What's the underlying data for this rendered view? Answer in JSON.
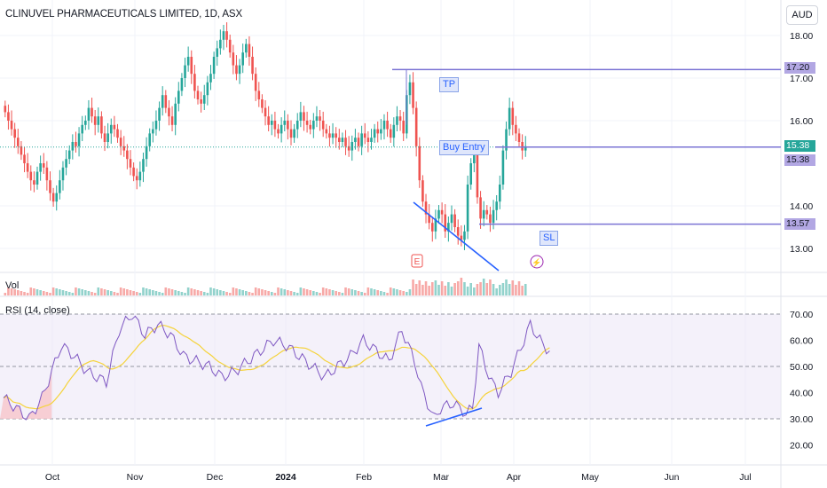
{
  "header": {
    "title": "CLINUVEL PHARMACEUTICALS LIMITED, 1D, ASX",
    "currency": "AUD"
  },
  "annotations": {
    "tp_label": "TP",
    "buy_label": "Buy Entry",
    "sl_label": "SL",
    "earnings_marker": "E",
    "dividend_marker": "⚡"
  },
  "price_tags": {
    "tp": "17.20",
    "current": "15.38",
    "current_close": "15.38",
    "sl": "13.57"
  },
  "panes": {
    "volume_label": "Vol",
    "rsi_label": "RSI (14, close)"
  },
  "colors": {
    "up": "#26a69a",
    "down": "#ef5350",
    "level_line": "#7b74d4",
    "tag_fill": "#b2a7e3",
    "trendline": "#2962ff",
    "rsi_line": "#7e57c2",
    "rsi_ma": "#f5d33b",
    "rsi_band": "#ede7f6"
  },
  "chart_data": [
    {
      "type": "candlestick",
      "title": "CLINUVEL PHARMACEUTICALS LIMITED, 1D, ASX",
      "x_ticks": [
        "Oct",
        "Nov",
        "Dec",
        "2024",
        "Feb",
        "Mar",
        "Apr",
        "May",
        "Jun",
        "Jul"
      ],
      "y_ticks": [
        "18.00",
        "17.00",
        "16.00",
        "14.00",
        "13.00"
      ],
      "ylim": [
        12.5,
        18.5
      ],
      "closes": [
        16.2,
        16.0,
        15.8,
        15.6,
        15.4,
        15.2,
        15.0,
        14.8,
        14.6,
        14.5,
        14.8,
        15.0,
        14.9,
        14.6,
        14.3,
        14.1,
        14.3,
        14.6,
        14.9,
        15.1,
        15.3,
        15.5,
        15.4,
        15.7,
        15.9,
        16.0,
        16.3,
        16.1,
        15.9,
        16.1,
        15.7,
        15.5,
        15.7,
        15.9,
        15.8,
        15.6,
        15.4,
        15.3,
        15.1,
        14.9,
        14.7,
        14.6,
        14.8,
        15.1,
        15.4,
        15.7,
        15.8,
        16.0,
        16.3,
        16.6,
        16.3,
        16.1,
        15.9,
        16.4,
        16.7,
        17.0,
        17.3,
        17.5,
        17.1,
        16.7,
        16.5,
        16.4,
        16.6,
        16.9,
        17.1,
        17.5,
        17.7,
        17.9,
        18.1,
        17.9,
        17.6,
        17.3,
        17.1,
        17.3,
        17.6,
        17.8,
        17.5,
        17.1,
        16.7,
        16.5,
        16.3,
        16.1,
        15.9,
        16.0,
        15.8,
        15.7,
        15.9,
        16.0,
        15.8,
        15.6,
        15.8,
        16.0,
        16.2,
        16.0,
        15.9,
        15.8,
        16.0,
        16.1,
        16.0,
        15.8,
        15.7,
        15.6,
        15.7,
        15.6,
        15.5,
        15.6,
        15.4,
        15.3,
        15.5,
        15.6,
        15.4,
        15.7,
        15.6,
        15.5,
        15.6,
        15.8,
        15.7,
        15.8,
        16.0,
        15.8,
        15.6,
        15.9,
        16.1,
        16.0,
        15.7,
        16.6,
        16.9,
        16.3,
        15.4,
        14.6,
        14.1,
        13.8,
        13.6,
        13.4,
        13.7,
        13.9,
        13.8,
        13.4,
        13.6,
        13.8,
        13.5,
        13.3,
        13.2,
        13.4,
        14.5,
        15.0,
        15.3,
        14.2,
        13.7,
        13.9,
        13.8,
        13.6,
        13.9,
        14.1,
        14.5,
        15.3,
        15.8,
        16.3,
        15.9,
        15.7,
        15.5,
        15.3,
        15.4
      ],
      "levels": {
        "tp": 17.2,
        "buy_entry": 15.38,
        "sl": 13.57
      },
      "volume_label": "Vol"
    },
    {
      "type": "line",
      "title": "RSI (14, close)",
      "y_ticks": [
        "70.00",
        "60.00",
        "50.00",
        "40.00",
        "30.00",
        "20.00"
      ],
      "ylim": [
        15,
        72
      ],
      "rsi_knots": [
        [
          0,
          38
        ],
        [
          4,
          34
        ],
        [
          8,
          30
        ],
        [
          12,
          38
        ],
        [
          18,
          58
        ],
        [
          22,
          54
        ],
        [
          26,
          48
        ],
        [
          32,
          44
        ],
        [
          36,
          64
        ],
        [
          40,
          70
        ],
        [
          44,
          62
        ],
        [
          48,
          66
        ],
        [
          52,
          62
        ],
        [
          56,
          54
        ],
        [
          60,
          52
        ],
        [
          64,
          50
        ],
        [
          68,
          46
        ],
        [
          72,
          48
        ],
        [
          76,
          52
        ],
        [
          80,
          56
        ],
        [
          84,
          60
        ],
        [
          88,
          58
        ],
        [
          92,
          54
        ],
        [
          96,
          50
        ],
        [
          100,
          46
        ],
        [
          104,
          50
        ],
        [
          108,
          54
        ],
        [
          112,
          60
        ],
        [
          116,
          56
        ],
        [
          120,
          52
        ],
        [
          124,
          64
        ],
        [
          126,
          58
        ],
        [
          128,
          52
        ],
        [
          130,
          42
        ],
        [
          132,
          36
        ],
        [
          134,
          30
        ],
        [
          136,
          34
        ],
        [
          140,
          36
        ],
        [
          144,
          32
        ],
        [
          146,
          34
        ],
        [
          148,
          58
        ],
        [
          150,
          50
        ],
        [
          152,
          44
        ],
        [
          154,
          40
        ],
        [
          156,
          44
        ],
        [
          158,
          48
        ],
        [
          160,
          54
        ],
        [
          162,
          60
        ],
        [
          164,
          66
        ],
        [
          166,
          62
        ],
        [
          168,
          58
        ],
        [
          170,
          56
        ]
      ]
    }
  ]
}
